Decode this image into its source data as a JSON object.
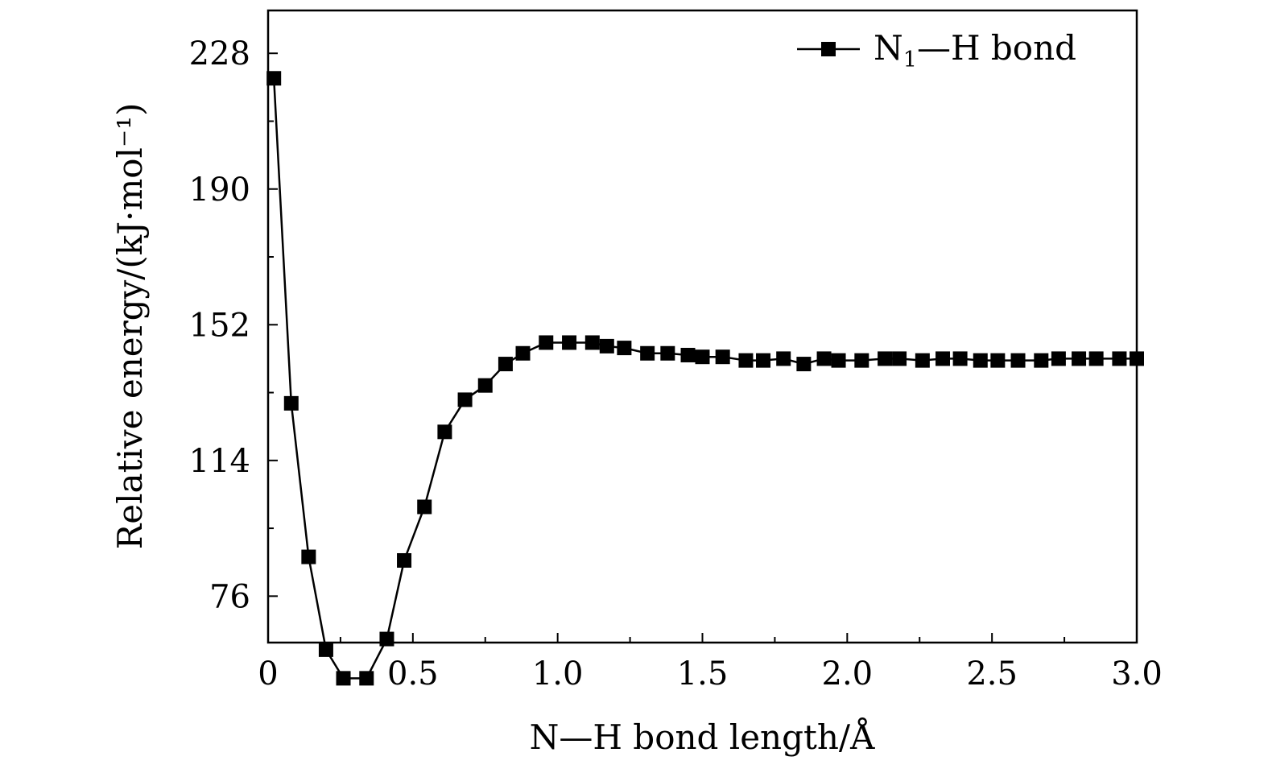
{
  "chart_data": {
    "type": "line",
    "xlabel": "N—H bond length/Å",
    "ylabel": "Relative energy/(kJ·mol⁻¹)",
    "xlim": [
      0,
      3.0
    ],
    "ylim": [
      63,
      240
    ],
    "x_ticks": [
      0,
      0.5,
      1.0,
      1.5,
      2.0,
      2.5,
      3.0
    ],
    "x_tick_labels": [
      "0",
      "0.5",
      "1.0",
      "1.5",
      "2.0",
      "2.5",
      "3.0"
    ],
    "y_ticks": [
      76,
      114,
      152,
      190,
      228
    ],
    "y_tick_labels": [
      "76",
      "114",
      "152",
      "190",
      "228"
    ],
    "legend_position": "top-right",
    "grid": false,
    "series": [
      {
        "name": "N₁—H bond",
        "legend_main": "N",
        "legend_sub": "1",
        "legend_rest": "—H bond",
        "marker": "square",
        "color": "#000000",
        "x": [
          0.02,
          0.08,
          0.14,
          0.2,
          0.26,
          0.34,
          0.41,
          0.47,
          0.54,
          0.61,
          0.68,
          0.75,
          0.82,
          0.88,
          0.96,
          1.04,
          1.12,
          1.17,
          1.23,
          1.31,
          1.38,
          1.45,
          1.5,
          1.57,
          1.65,
          1.71,
          1.78,
          1.85,
          1.92,
          1.97,
          2.05,
          2.13,
          2.18,
          2.26,
          2.33,
          2.39,
          2.46,
          2.52,
          2.59,
          2.67,
          2.73,
          2.8,
          2.86,
          2.94,
          3.0
        ],
        "values": [
          221,
          130,
          87,
          61,
          53,
          53,
          64,
          86,
          101,
          122,
          131,
          135,
          141,
          144,
          147,
          147,
          147,
          146,
          145.5,
          144,
          144,
          143.5,
          143,
          143,
          142,
          142,
          142.5,
          141,
          142.5,
          142,
          142,
          142.5,
          142.5,
          142,
          142.5,
          142.5,
          142,
          142,
          142,
          142,
          142.5,
          142.5,
          142.5,
          142.5,
          142.5
        ]
      }
    ]
  }
}
